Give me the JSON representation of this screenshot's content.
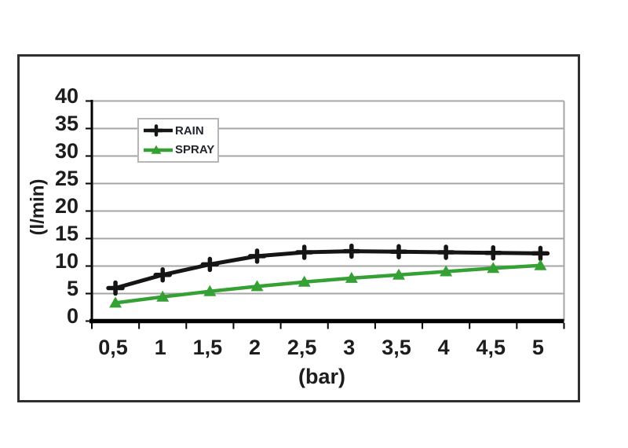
{
  "chart_data": {
    "type": "line",
    "title": "",
    "xlabel": "(bar)",
    "ylabel": "(l/min)",
    "x_categories": [
      "0,5",
      "1",
      "1,5",
      "2",
      "2,5",
      "3",
      "3,5",
      "4",
      "4,5",
      "5"
    ],
    "x_values": [
      0.5,
      1,
      1.5,
      2,
      2.5,
      3,
      3.5,
      4,
      4.5,
      5
    ],
    "y_ticks": [
      "0",
      "5",
      "10",
      "15",
      "20",
      "25",
      "30",
      "35",
      "40"
    ],
    "ylim": [
      0,
      40
    ],
    "grid": "horizontal-gridlines-on",
    "legend_position": "inside-top-left",
    "series": [
      {
        "name": "RAIN",
        "color": "#151515",
        "marker": "plus",
        "values": [
          6.0,
          8.4,
          10.3,
          11.8,
          12.5,
          12.7,
          12.6,
          12.5,
          12.4,
          12.3
        ]
      },
      {
        "name": "SPRAY",
        "color": "#35a135",
        "marker": "triangle",
        "values": [
          3.3,
          4.4,
          5.4,
          6.3,
          7.1,
          7.8,
          8.4,
          9.0,
          9.6,
          10.1
        ]
      }
    ]
  },
  "colors": {
    "gridline": "#a6a6a6",
    "axis": "#000000",
    "plot_right_border": "#a6a6a6",
    "frame_border": "#2f2f2f",
    "legend_border": "#b6b6b6",
    "text": "#1d1d1d",
    "background": "#ffffff"
  }
}
